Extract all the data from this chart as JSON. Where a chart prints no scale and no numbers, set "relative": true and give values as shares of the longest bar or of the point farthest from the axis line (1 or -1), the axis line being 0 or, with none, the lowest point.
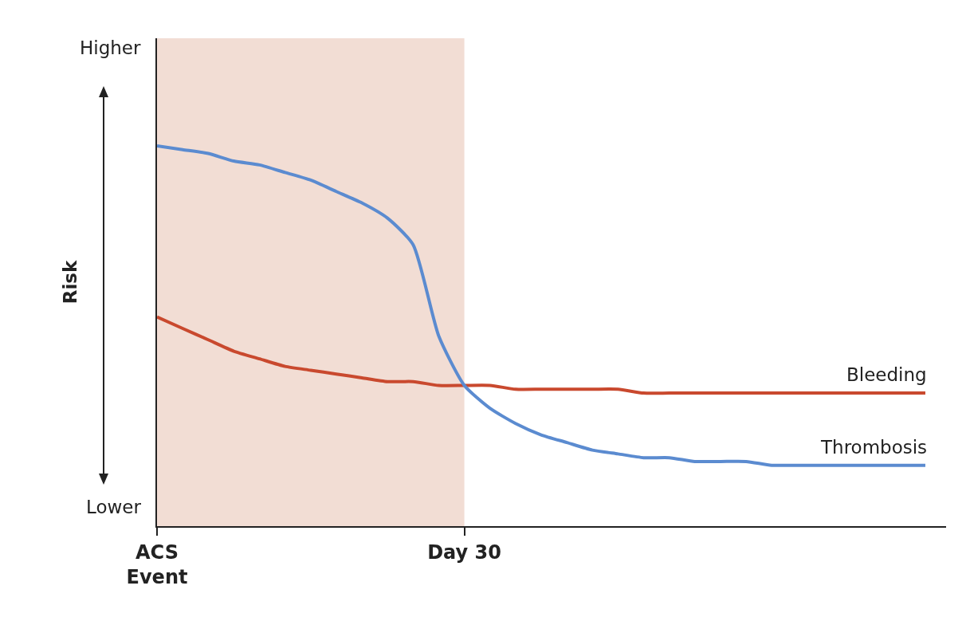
{
  "chart_data": {
    "type": "line",
    "relative": true,
    "ylabel": "Risk",
    "annotations": [
      "Higher",
      "Lower"
    ],
    "categories": [
      "ACS\nEvent",
      null,
      null,
      null,
      null,
      null,
      null,
      null,
      null,
      null,
      null,
      null,
      "Day 30",
      null,
      null,
      null,
      null,
      null,
      null,
      null,
      null,
      null,
      null,
      null,
      null,
      null,
      null,
      null,
      null,
      null,
      null
    ],
    "bands": [
      {
        "axis": "x",
        "from": "ACS\nEvent",
        "to": "Day 30",
        "color": "#f2ddd4"
      }
    ],
    "legend": false,
    "line_style": "solid",
    "marker": "none",
    "series": [
      {
        "name": "Bleeding",
        "color": "#c9492e",
        "values": [
          0.55,
          0.52,
          0.49,
          0.46,
          0.44,
          0.42,
          0.41,
          0.4,
          0.39,
          0.38,
          0.38,
          0.37,
          0.37,
          0.37,
          0.36,
          0.36,
          0.36,
          0.36,
          0.36,
          0.35,
          0.35,
          0.35,
          0.35,
          0.35,
          0.35,
          0.35,
          0.35,
          0.35,
          0.35,
          0.35,
          0.35
        ]
      },
      {
        "name": "Thrombosis",
        "color": "#5b8bd0",
        "values": [
          1,
          0.99,
          0.98,
          0.96,
          0.95,
          0.93,
          0.91,
          0.88,
          0.85,
          0.81,
          0.74,
          0.5,
          0.37,
          0.31,
          0.27,
          0.24,
          0.22,
          0.2,
          0.19,
          0.18,
          0.18,
          0.17,
          0.17,
          0.17,
          0.16,
          0.16,
          0.16,
          0.16,
          0.16,
          0.16,
          0.16
        ]
      }
    ]
  }
}
